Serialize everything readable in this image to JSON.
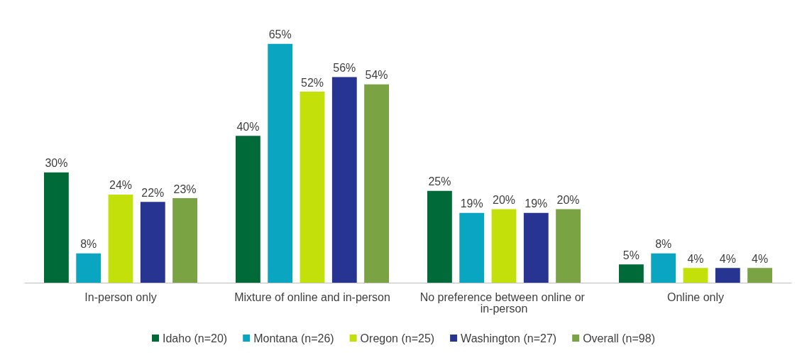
{
  "chart_data": {
    "type": "bar",
    "categories": [
      "In-person only",
      "Mixture of online and in-person",
      "No preference between online or in-person",
      "Online only"
    ],
    "series": [
      {
        "name": "Idaho (n=20)",
        "color": "#006a38",
        "values": [
          30,
          40,
          25,
          5
        ],
        "value_labels": [
          "30%",
          "40%",
          "25%",
          "5%"
        ]
      },
      {
        "name": "Montana (n=26)",
        "color": "#0aa5c0",
        "values": [
          8,
          65,
          19,
          8
        ],
        "value_labels": [
          "8%",
          "65%",
          "19%",
          "8%"
        ]
      },
      {
        "name": "Oregon (n=25)",
        "color": "#c3e00a",
        "values": [
          24,
          52,
          20,
          4
        ],
        "value_labels": [
          "24%",
          "52%",
          "20%",
          "4%"
        ]
      },
      {
        "name": "Washington (n=27)",
        "color": "#273491",
        "values": [
          22,
          56,
          19,
          4
        ],
        "value_labels": [
          "22%",
          "56%",
          "19%",
          "4%"
        ]
      },
      {
        "name": "Overall (n=98)",
        "color": "#7aa443",
        "values": [
          23,
          54,
          20,
          4
        ],
        "value_labels": [
          "23%",
          "54%",
          "20%",
          "4%"
        ]
      }
    ],
    "grid": false,
    "legend": "bottom"
  }
}
